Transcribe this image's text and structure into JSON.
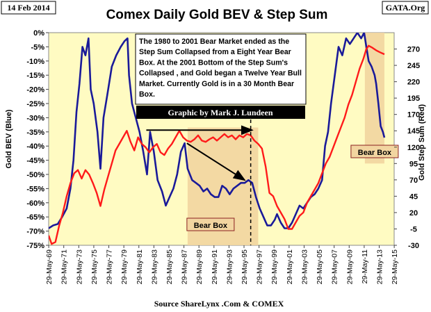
{
  "header": {
    "date": "14 Feb 2014",
    "title": "Comex Daily Gold BEV &  Step Sum",
    "brand": "GATA.Org"
  },
  "annotation_box": {
    "lines": [
      "The 1980 to 2001 Bear Market ended as the",
      "Step Sum Collapsed from a Eight Year Bear",
      "Box.  At the  2001 Bottom of the Step Sum's",
      "Collapsed , and Gold began a Twelve Year Bull",
      "Market.  Currently Gold is in a  30 Month Bear",
      "Box."
    ]
  },
  "graphic_credit": "Graphic by Mark J. Lundeen",
  "source": "Source ShareLynx .Com & COMEX",
  "colors": {
    "plot_bg": "#fffbc2",
    "box_fill": "#f2d5a0",
    "bev_line": "#1a1a99",
    "step_sum_line": "#ff1a1a"
  },
  "chart_data": {
    "type": "line",
    "title": "Comex Daily Gold BEV &  Step Sum",
    "xlabel": "",
    "ylabel_left": "Gold BEV   (Blue)",
    "ylabel_right": "Gold Step Sum   (Red)",
    "x_range": [
      1969.4,
      2015.4
    ],
    "ylim_left": [
      -75,
      0
    ],
    "ylim_right": [
      -30,
      295
    ],
    "x_ticks": [
      "29-May-69",
      "29-May-71",
      "29-May-73",
      "29-May-75",
      "29-May-77",
      "29-May-79",
      "29-May-81",
      "29-May-83",
      "29-May-85",
      "29-May-87",
      "29-May-89",
      "29-May-91",
      "29-May-93",
      "29-May-95",
      "29-May-97",
      "29-May-99",
      "29-May-01",
      "29-May-03",
      "29-May-05",
      "29-May-07",
      "29-May-09",
      "29-May-11",
      "29-May-13",
      "29-May-15"
    ],
    "y_ticks_left": [
      "0%",
      "-5%",
      "-10%",
      "-15%",
      "-20%",
      "-25%",
      "-30%",
      "-35%",
      "-40%",
      "-45%",
      "-50%",
      "-55%",
      "-60%",
      "-65%",
      "-70%",
      "-75%"
    ],
    "y_ticks_right": [
      "270",
      "245",
      "220",
      "195",
      "170",
      "145",
      "120",
      "95",
      "70",
      "45",
      "20",
      "-5",
      "-30"
    ],
    "grid": false,
    "series": [
      {
        "name": "Gold BEV   (Blue)",
        "axis": "left",
        "x": [
          1969.4,
          1970.0,
          1970.6,
          1971.2,
          1971.8,
          1972.3,
          1972.7,
          1973.1,
          1973.5,
          1973.9,
          1974.3,
          1974.7,
          1975.0,
          1975.4,
          1975.9,
          1976.3,
          1976.7,
          1977.2,
          1977.8,
          1978.4,
          1979.0,
          1979.5,
          1979.9,
          1980.1,
          1980.5,
          1981.0,
          1981.5,
          1982.0,
          1982.5,
          1982.9,
          1983.4,
          1983.9,
          1984.5,
          1985.0,
          1985.5,
          1986.0,
          1986.5,
          1987.0,
          1987.5,
          1987.9,
          1988.5,
          1989.0,
          1989.5,
          1990.0,
          1990.5,
          1991.0,
          1991.5,
          1992.0,
          1992.5,
          1993.0,
          1993.5,
          1994.0,
          1994.5,
          1995.0,
          1995.5,
          1996.0,
          1996.5,
          1997.0,
          1997.5,
          1998.0,
          1998.5,
          1999.0,
          1999.5,
          1999.8,
          2000.3,
          2000.8,
          2001.3,
          2001.8,
          2002.3,
          2002.8,
          2003.3,
          2003.8,
          2004.3,
          2004.8,
          2005.3,
          2005.8,
          2006.2,
          2006.6,
          2007.0,
          2007.5,
          2008.0,
          2008.5,
          2009.0,
          2009.5,
          2010.0,
          2010.5,
          2011.0,
          2011.4,
          2011.7,
          2012.0,
          2012.4,
          2012.8,
          2013.0,
          2013.3,
          2013.6,
          2013.9,
          2014.1
        ],
        "y": [
          -69,
          -68,
          -67.5,
          -65,
          -62,
          -55,
          -45,
          -28,
          -18,
          -5,
          -8,
          -2,
          -20,
          -25,
          -35,
          -48,
          -30,
          -22,
          -12,
          -8,
          -5,
          -3,
          -2,
          -15,
          -25,
          -30,
          -35,
          -42,
          -50,
          -35,
          -42,
          -52,
          -56,
          -61,
          -58,
          -55,
          -50,
          -42,
          -39,
          -48,
          -52,
          -53,
          -54,
          -56,
          -55,
          -57,
          -58,
          -58,
          -54,
          -55,
          -57,
          -55,
          -54,
          -53,
          -53,
          -52,
          -53,
          -58,
          -62,
          -65,
          -68,
          -68,
          -66,
          -64,
          -67,
          -69,
          -69,
          -67,
          -64,
          -61,
          -62,
          -60,
          -58,
          -57,
          -55,
          -52,
          -40,
          -35,
          -25,
          -15,
          -5,
          -8,
          -2,
          -4,
          -2,
          0,
          -2,
          0,
          -5,
          -10,
          -12,
          -15,
          -18,
          -25,
          -33,
          -35,
          -37
        ]
      },
      {
        "name": "Gold Step Sum   (Red)",
        "axis": "right",
        "x": [
          1969.4,
          1969.8,
          1970.3,
          1970.8,
          1971.3,
          1971.8,
          1972.3,
          1972.8,
          1973.3,
          1973.8,
          1974.3,
          1974.8,
          1975.3,
          1975.8,
          1976.3,
          1976.8,
          1977.3,
          1977.8,
          1978.3,
          1978.8,
          1979.3,
          1979.8,
          1980.3,
          1980.8,
          1981.3,
          1981.8,
          1982.3,
          1982.8,
          1983.3,
          1983.8,
          1984.3,
          1984.8,
          1985.3,
          1985.8,
          1986.3,
          1986.8,
          1987.3,
          1987.8,
          1988.3,
          1988.8,
          1989.3,
          1989.8,
          1990.3,
          1990.8,
          1991.3,
          1991.8,
          1992.3,
          1992.8,
          1993.3,
          1993.8,
          1994.3,
          1994.8,
          1995.3,
          1995.8,
          1996.3,
          1996.8,
          1997.3,
          1997.8,
          1998.3,
          1998.8,
          1999.3,
          1999.8,
          2000.3,
          2000.8,
          2001.3,
          2001.8,
          2002.3,
          2002.8,
          2003.3,
          2003.8,
          2004.3,
          2004.8,
          2005.3,
          2005.8,
          2006.3,
          2006.8,
          2007.3,
          2007.8,
          2008.3,
          2008.8,
          2009.3,
          2009.8,
          2010.3,
          2010.8,
          2011.3,
          2011.7,
          2012.0,
          2012.5,
          2013.0,
          2013.5,
          2014.1
        ],
        "y": [
          -15,
          -28,
          -25,
          0,
          20,
          45,
          65,
          80,
          85,
          72,
          85,
          78,
          65,
          50,
          30,
          55,
          75,
          95,
          115,
          125,
          135,
          145,
          128,
          115,
          135,
          125,
          120,
          112,
          120,
          125,
          112,
          108,
          118,
          125,
          135,
          145,
          135,
          130,
          128,
          132,
          138,
          130,
          128,
          132,
          135,
          130,
          135,
          140,
          135,
          138,
          132,
          138,
          135,
          140,
          138,
          130,
          125,
          118,
          90,
          50,
          45,
          30,
          20,
          10,
          -5,
          -5,
          5,
          15,
          20,
          35,
          45,
          55,
          65,
          80,
          95,
          105,
          120,
          135,
          150,
          165,
          185,
          200,
          220,
          240,
          255,
          270,
          275,
          272,
          268,
          265,
          262
        ]
      }
    ],
    "annotations": [
      {
        "type": "shaded_box",
        "label": "Bear Box",
        "x_range": [
          1987.9,
          1997.3
        ],
        "y_range_right": [
          -30,
          150
        ]
      },
      {
        "type": "shaded_box",
        "label": "Bear Box",
        "x_range": [
          2011.5,
          2014.1
        ],
        "y_range_right": [
          95,
          295
        ]
      },
      {
        "type": "arrow",
        "from": [
          1982.4,
          146
        ],
        "to_point": [
          1996.5,
          146
        ],
        "axis": "right"
      },
      {
        "type": "arrow",
        "from": [
          1987.8,
          -39
        ],
        "to_point": [
          1995.5,
          -52
        ],
        "axis": "left"
      },
      {
        "type": "dashed_line",
        "x": 1996.3
      }
    ]
  }
}
